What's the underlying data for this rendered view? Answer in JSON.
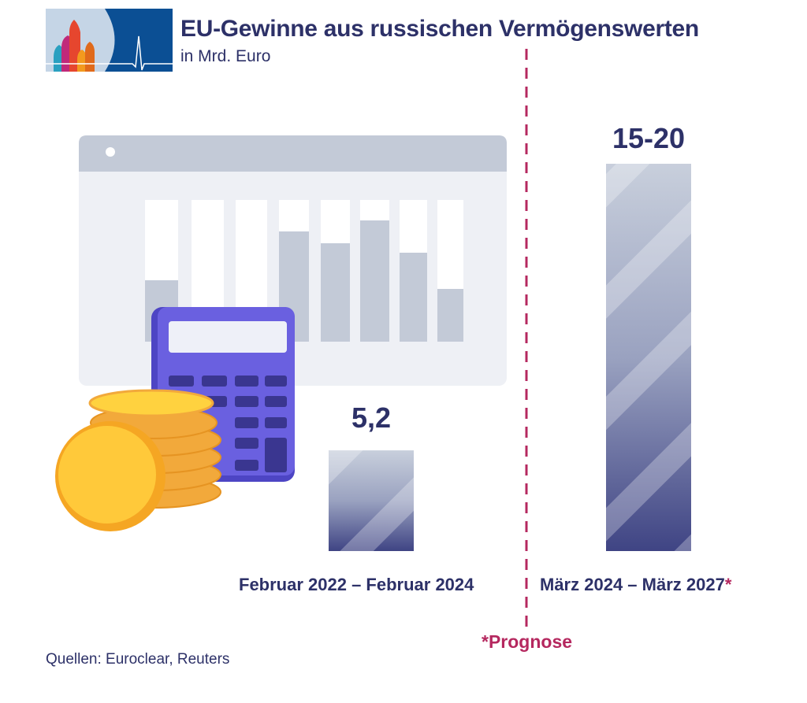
{
  "header": {
    "title": "EU-Gewinne aus russischen Vermögenswerten",
    "subtitle": "in Mrd. Euro"
  },
  "chart_data": {
    "type": "bar",
    "title": "EU-Gewinne aus russischen Vermögenswerten",
    "subtitle": "in Mrd. Euro",
    "categories": [
      "Februar 2022 – Februar 2024",
      "März 2024 – März 2027"
    ],
    "values": [
      5.2,
      20
    ],
    "value_ranges": [
      [
        5.2,
        5.2
      ],
      [
        15,
        20
      ]
    ],
    "data_labels": [
      "5,2",
      "15-20"
    ],
    "forecast": [
      false,
      true
    ],
    "forecast_marker": "*",
    "forecast_note": "*Prognose",
    "ylim": [
      0,
      20
    ],
    "grid": false,
    "bar_color": "#3f4484",
    "divider_color": "#b5285f"
  },
  "footer": {
    "source": "Quellen: Euroclear, Reuters"
  }
}
